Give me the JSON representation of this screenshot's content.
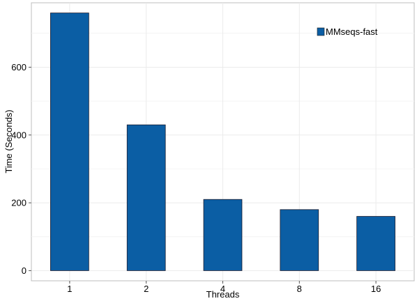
{
  "chart_data": {
    "type": "bar",
    "title": "",
    "xlabel": "Threads",
    "ylabel": "Time (Seconds)",
    "categories": [
      "1",
      "2",
      "4",
      "8",
      "16"
    ],
    "series": [
      {
        "name": "MMseqs-fast",
        "values": [
          760,
          430,
          210,
          180,
          160
        ],
        "color": "#0b5ea4"
      }
    ],
    "ylim": [
      -30,
      790
    ],
    "yticks": [
      0,
      200,
      400,
      600
    ],
    "grid": true,
    "legend_position": "top-right"
  }
}
